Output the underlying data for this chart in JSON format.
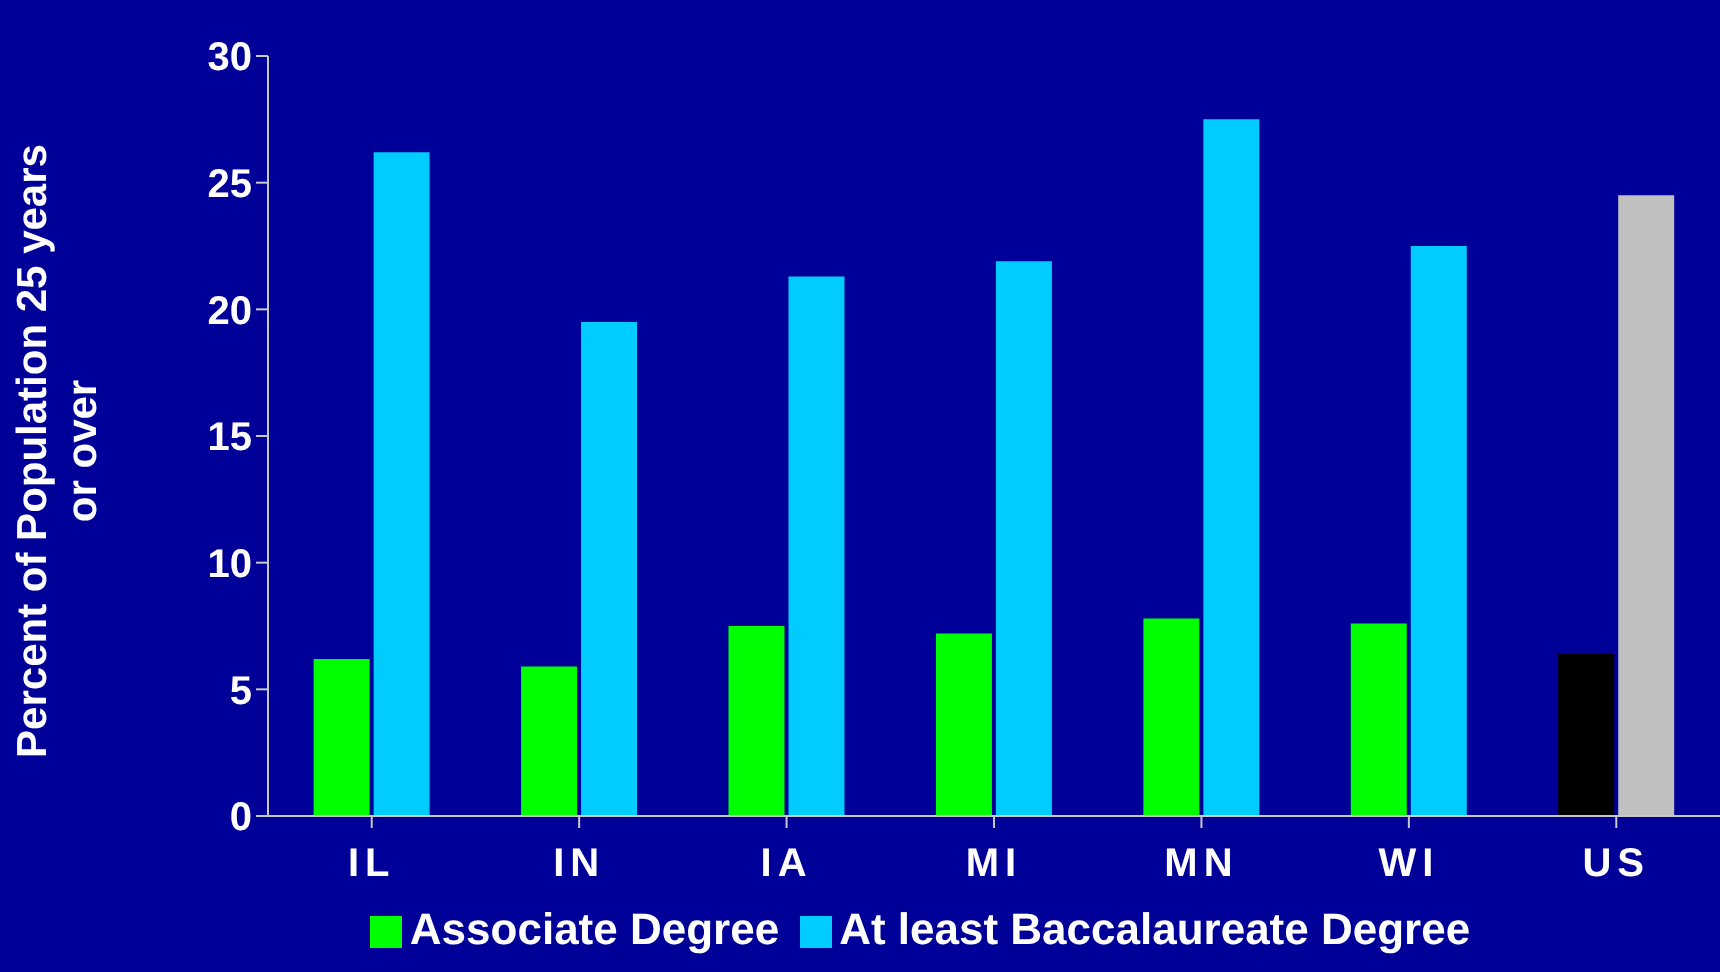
{
  "chart_data": {
    "type": "bar",
    "ylabel": "Percent of Population 25 years or over",
    "categories": [
      "IL",
      "IN",
      "IA",
      "MI",
      "MN",
      "WI",
      "US"
    ],
    "series": [
      {
        "name": "Associate Degree",
        "color": "#00ff00",
        "colors": [
          "#00ff00",
          "#00ff00",
          "#00ff00",
          "#00ff00",
          "#00ff00",
          "#00ff00",
          "#000000"
        ],
        "values": [
          6.2,
          5.9,
          7.5,
          7.2,
          7.8,
          7.6,
          6.4
        ]
      },
      {
        "name": "At least Baccalaureate Degree",
        "color": "#00ccff",
        "colors": [
          "#00ccff",
          "#00ccff",
          "#00ccff",
          "#00ccff",
          "#00ccff",
          "#00ccff",
          "#c0c0c0"
        ],
        "values": [
          26.2,
          19.5,
          21.3,
          21.9,
          27.5,
          22.5,
          24.5
        ]
      }
    ],
    "ylim": [
      0,
      30
    ],
    "yticks": [
      0,
      5,
      10,
      15,
      20,
      25,
      30
    ],
    "grid": false,
    "legend": "bottom"
  }
}
